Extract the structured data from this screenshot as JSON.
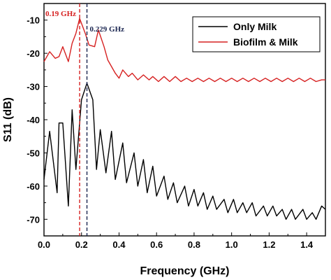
{
  "chart_data": {
    "type": "line",
    "xlabel": "Frequency (GHz)",
    "ylabel": "S11 (dB)",
    "xlim": [
      0.0,
      1.5
    ],
    "ylim": [
      -75,
      -5
    ],
    "x_ticks": [
      0.0,
      0.2,
      0.4,
      0.6,
      0.8,
      1.0,
      1.2,
      1.4
    ],
    "x_tick_labels": [
      "0.0",
      "0.2",
      "0.4",
      "0.6",
      "0.8",
      "1.0",
      "1.2",
      "1.4"
    ],
    "y_ticks": [
      -10,
      -20,
      -30,
      -40,
      -50,
      -60,
      -70
    ],
    "y_tick_labels": [
      "-10",
      "-20",
      "-30",
      "-40",
      "-50",
      "-60",
      "-70"
    ],
    "grid": false,
    "legend_position": "top-right",
    "annotations": [
      {
        "text": "0.19 GHz",
        "x": 0.19,
        "color": "#d62020",
        "line_style": "dashed"
      },
      {
        "text": "0.229 GHz",
        "x": 0.229,
        "color": "#1a2550",
        "line_style": "dashed"
      }
    ],
    "series": [
      {
        "name": "Only Milk",
        "color": "#000000",
        "x": [
          0.0,
          0.03,
          0.07,
          0.08,
          0.1,
          0.13,
          0.15,
          0.17,
          0.2,
          0.229,
          0.26,
          0.28,
          0.3,
          0.33,
          0.36,
          0.38,
          0.42,
          0.44,
          0.48,
          0.5,
          0.53,
          0.55,
          0.58,
          0.6,
          0.64,
          0.66,
          0.69,
          0.71,
          0.75,
          0.77,
          0.8,
          0.82,
          0.85,
          0.87,
          0.9,
          0.92,
          0.96,
          0.98,
          1.01,
          1.03,
          1.06,
          1.08,
          1.11,
          1.13,
          1.17,
          1.19,
          1.22,
          1.24,
          1.27,
          1.29,
          1.32,
          1.34,
          1.38,
          1.4,
          1.43,
          1.45,
          1.48,
          1.5
        ],
        "y": [
          -58,
          -43.5,
          -62,
          -41,
          -41,
          -66,
          -37,
          -55,
          -34,
          -29,
          -34,
          -55,
          -43,
          -56,
          -43.5,
          -58,
          -47,
          -59,
          -50,
          -60,
          -52,
          -62,
          -54,
          -63,
          -57,
          -64,
          -59,
          -65,
          -60,
          -66,
          -61,
          -66,
          -62,
          -67,
          -63,
          -67,
          -64,
          -68,
          -64,
          -68,
          -65,
          -68,
          -65,
          -69,
          -66,
          -69,
          -66,
          -69,
          -67,
          -70,
          -67,
          -70,
          -67,
          -70,
          -68,
          -70,
          -66,
          -67
        ]
      },
      {
        "name": "Biofilm & Milk",
        "color": "#d62020",
        "x": [
          0.0,
          0.03,
          0.06,
          0.08,
          0.1,
          0.13,
          0.15,
          0.17,
          0.19,
          0.22,
          0.24,
          0.27,
          0.29,
          0.32,
          0.34,
          0.36,
          0.38,
          0.4,
          0.42,
          0.45,
          0.47,
          0.5,
          0.53,
          0.56,
          0.58,
          0.61,
          0.64,
          0.67,
          0.7,
          0.73,
          0.76,
          0.79,
          0.82,
          0.85,
          0.88,
          0.91,
          0.94,
          0.97,
          1.0,
          1.03,
          1.06,
          1.09,
          1.12,
          1.15,
          1.18,
          1.21,
          1.24,
          1.27,
          1.3,
          1.33,
          1.36,
          1.39,
          1.42,
          1.45,
          1.48,
          1.5
        ],
        "y": [
          -22.5,
          -19.5,
          -21.5,
          -21,
          -18,
          -22.5,
          -17,
          -14,
          -9.5,
          -14,
          -17.5,
          -18,
          -13,
          -18,
          -22,
          -24,
          -26,
          -27.5,
          -25,
          -27,
          -26,
          -28,
          -26.5,
          -28,
          -27,
          -28.5,
          -27,
          -28.5,
          -27,
          -28.5,
          -27.5,
          -28.5,
          -27.5,
          -28.5,
          -27.5,
          -28.5,
          -27.5,
          -28.5,
          -27.5,
          -28.5,
          -27.5,
          -28.5,
          -27.5,
          -28.5,
          -27.5,
          -28.5,
          -27.5,
          -28.5,
          -27.5,
          -28.5,
          -27.5,
          -28.5,
          -27.5,
          -28.5,
          -28,
          -28
        ]
      }
    ]
  }
}
